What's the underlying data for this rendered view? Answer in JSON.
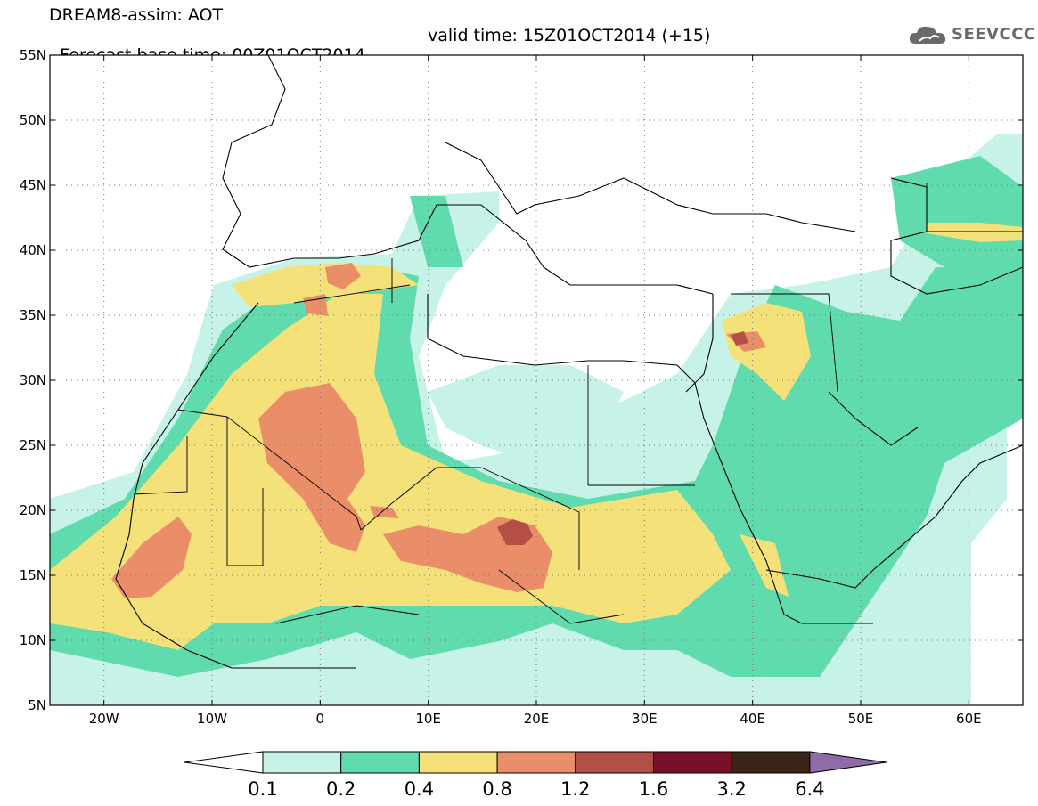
{
  "header": {
    "line1": "DREAM8-assim: AOT",
    "line2_base": "Forecast base time: 00Z01OCT2014",
    "line2_valid": "valid time: 15Z01OCT2014 (+15)"
  },
  "logo": {
    "text": "SEEVCCC",
    "icon": "cloud-icon"
  },
  "map": {
    "lat_ticks": [
      "55N",
      "50N",
      "45N",
      "40N",
      "35N",
      "30N",
      "25N",
      "20N",
      "15N",
      "10N",
      "5N"
    ],
    "lon_ticks": [
      "20W",
      "10W",
      "0",
      "10E",
      "20E",
      "30E",
      "40E",
      "50E",
      "60E"
    ],
    "lat_range": [
      5,
      55
    ],
    "lon_range": [
      -25,
      65
    ],
    "grid": "dotted"
  },
  "colorbar": {
    "levels": [
      "0.1",
      "0.2",
      "0.4",
      "0.8",
      "1.2",
      "1.6",
      "3.2",
      "6.4"
    ],
    "colors": [
      "#ffffff",
      "#c6f2e7",
      "#5fdbae",
      "#f5e17a",
      "#ea8e69",
      "#b34f45",
      "#7a0f29",
      "#3b2417",
      "#8f6ba8"
    ]
  }
}
